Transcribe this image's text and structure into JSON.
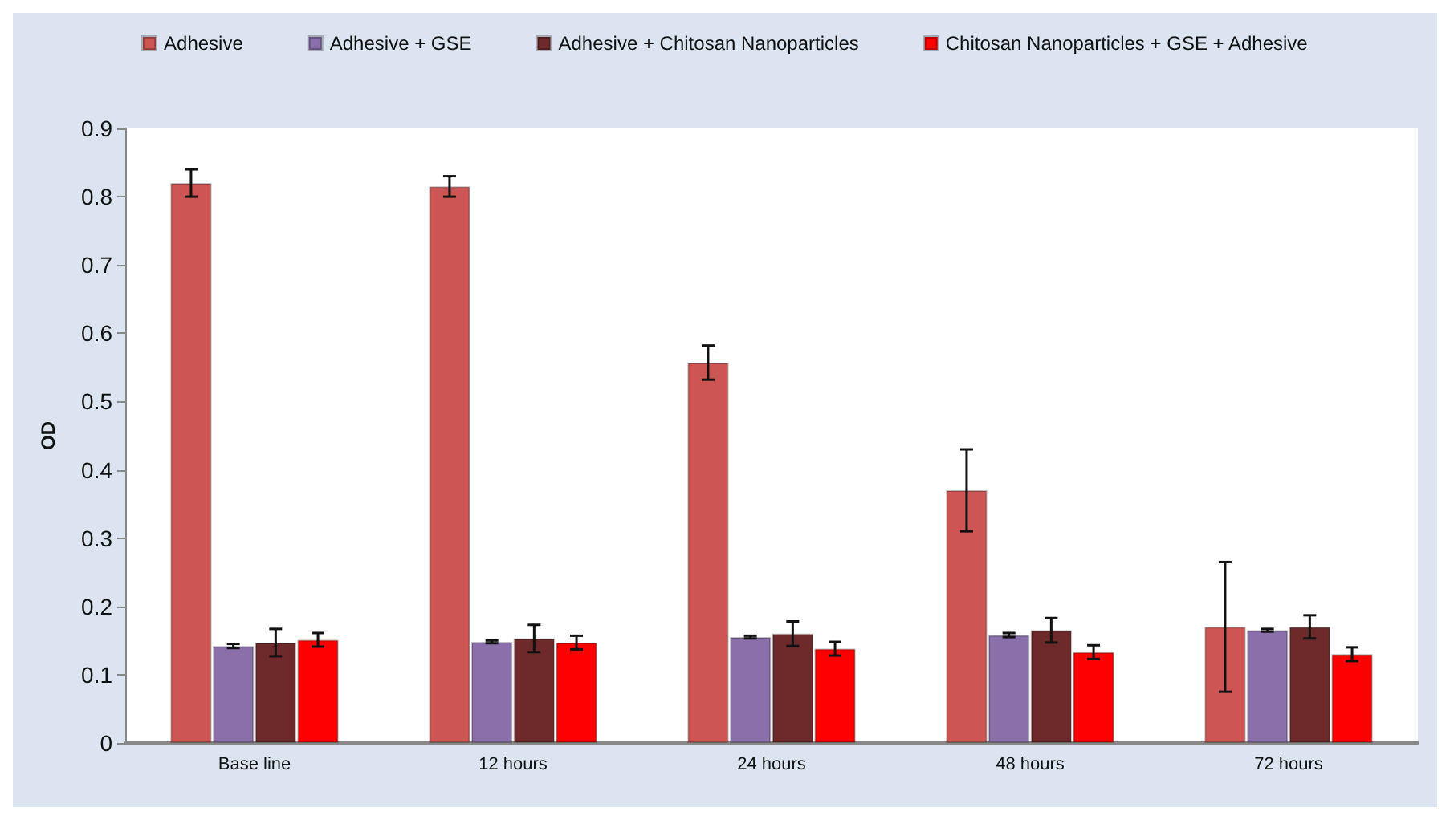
{
  "chart_data": {
    "type": "bar",
    "ylabel": "OD",
    "categories": [
      "Base line",
      "12 hours",
      "24 hours",
      "48 hours",
      "72 hours"
    ],
    "series": [
      {
        "name": "Adhesive",
        "color": "#cd5654",
        "values": [
          0.82,
          0.815,
          0.557,
          0.37,
          0.17
        ],
        "errors": [
          0.02,
          0.015,
          0.025,
          0.06,
          0.095
        ]
      },
      {
        "name": "Adhesive + GSE",
        "color": "#8a6fab",
        "values": [
          0.142,
          0.148,
          0.155,
          0.158,
          0.165
        ],
        "errors": [
          0.003,
          0.002,
          0.002,
          0.003,
          0.002
        ]
      },
      {
        "name": "Adhesive + Chitosan Nanoparticles",
        "color": "#6e2a2a",
        "values": [
          0.147,
          0.153,
          0.16,
          0.165,
          0.17
        ],
        "errors": [
          0.02,
          0.02,
          0.018,
          0.018,
          0.017
        ]
      },
      {
        "name": "Chitosan Nanoparticles + GSE + Adhesive",
        "color": "#ff0000",
        "values": [
          0.151,
          0.147,
          0.138,
          0.133,
          0.13
        ],
        "errors": [
          0.01,
          0.01,
          0.01,
          0.01,
          0.01
        ]
      }
    ],
    "ylim": [
      0,
      0.9
    ],
    "yticks": [
      0,
      0.1,
      0.2,
      0.3,
      0.4,
      0.5,
      0.6,
      0.7,
      0.8,
      0.9
    ],
    "grid": false,
    "legend": "top"
  }
}
